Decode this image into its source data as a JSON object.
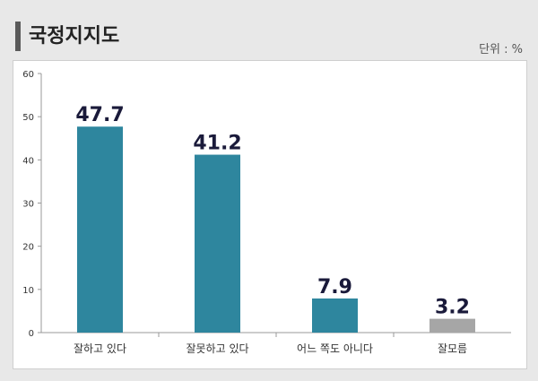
{
  "header": {
    "title": "국정지지도",
    "unit": "단위 : %"
  },
  "colors": {
    "bar_primary": "#2e869e",
    "bar_neutral": "#a6a6a6",
    "grid": "#b3b3b3",
    "value_label": "#1a1a3a"
  },
  "chart_data": {
    "type": "bar",
    "categories": [
      "잘하고 있다",
      "잘못하고 있다",
      "어느 쪽도 아니다",
      "잘모름"
    ],
    "values": [
      47.7,
      41.2,
      7.9,
      3.2
    ],
    "value_labels": [
      "47.7",
      "41.2",
      "7.9",
      "3.2"
    ],
    "bar_colors": [
      "#2e869e",
      "#2e869e",
      "#2e869e",
      "#a6a6a6"
    ],
    "yticks": [
      0,
      10,
      20,
      30,
      40,
      50,
      60
    ],
    "ylim": [
      0,
      60
    ],
    "title": "국정지지도",
    "xlabel": "",
    "ylabel": "",
    "grid": false,
    "legend": false
  }
}
